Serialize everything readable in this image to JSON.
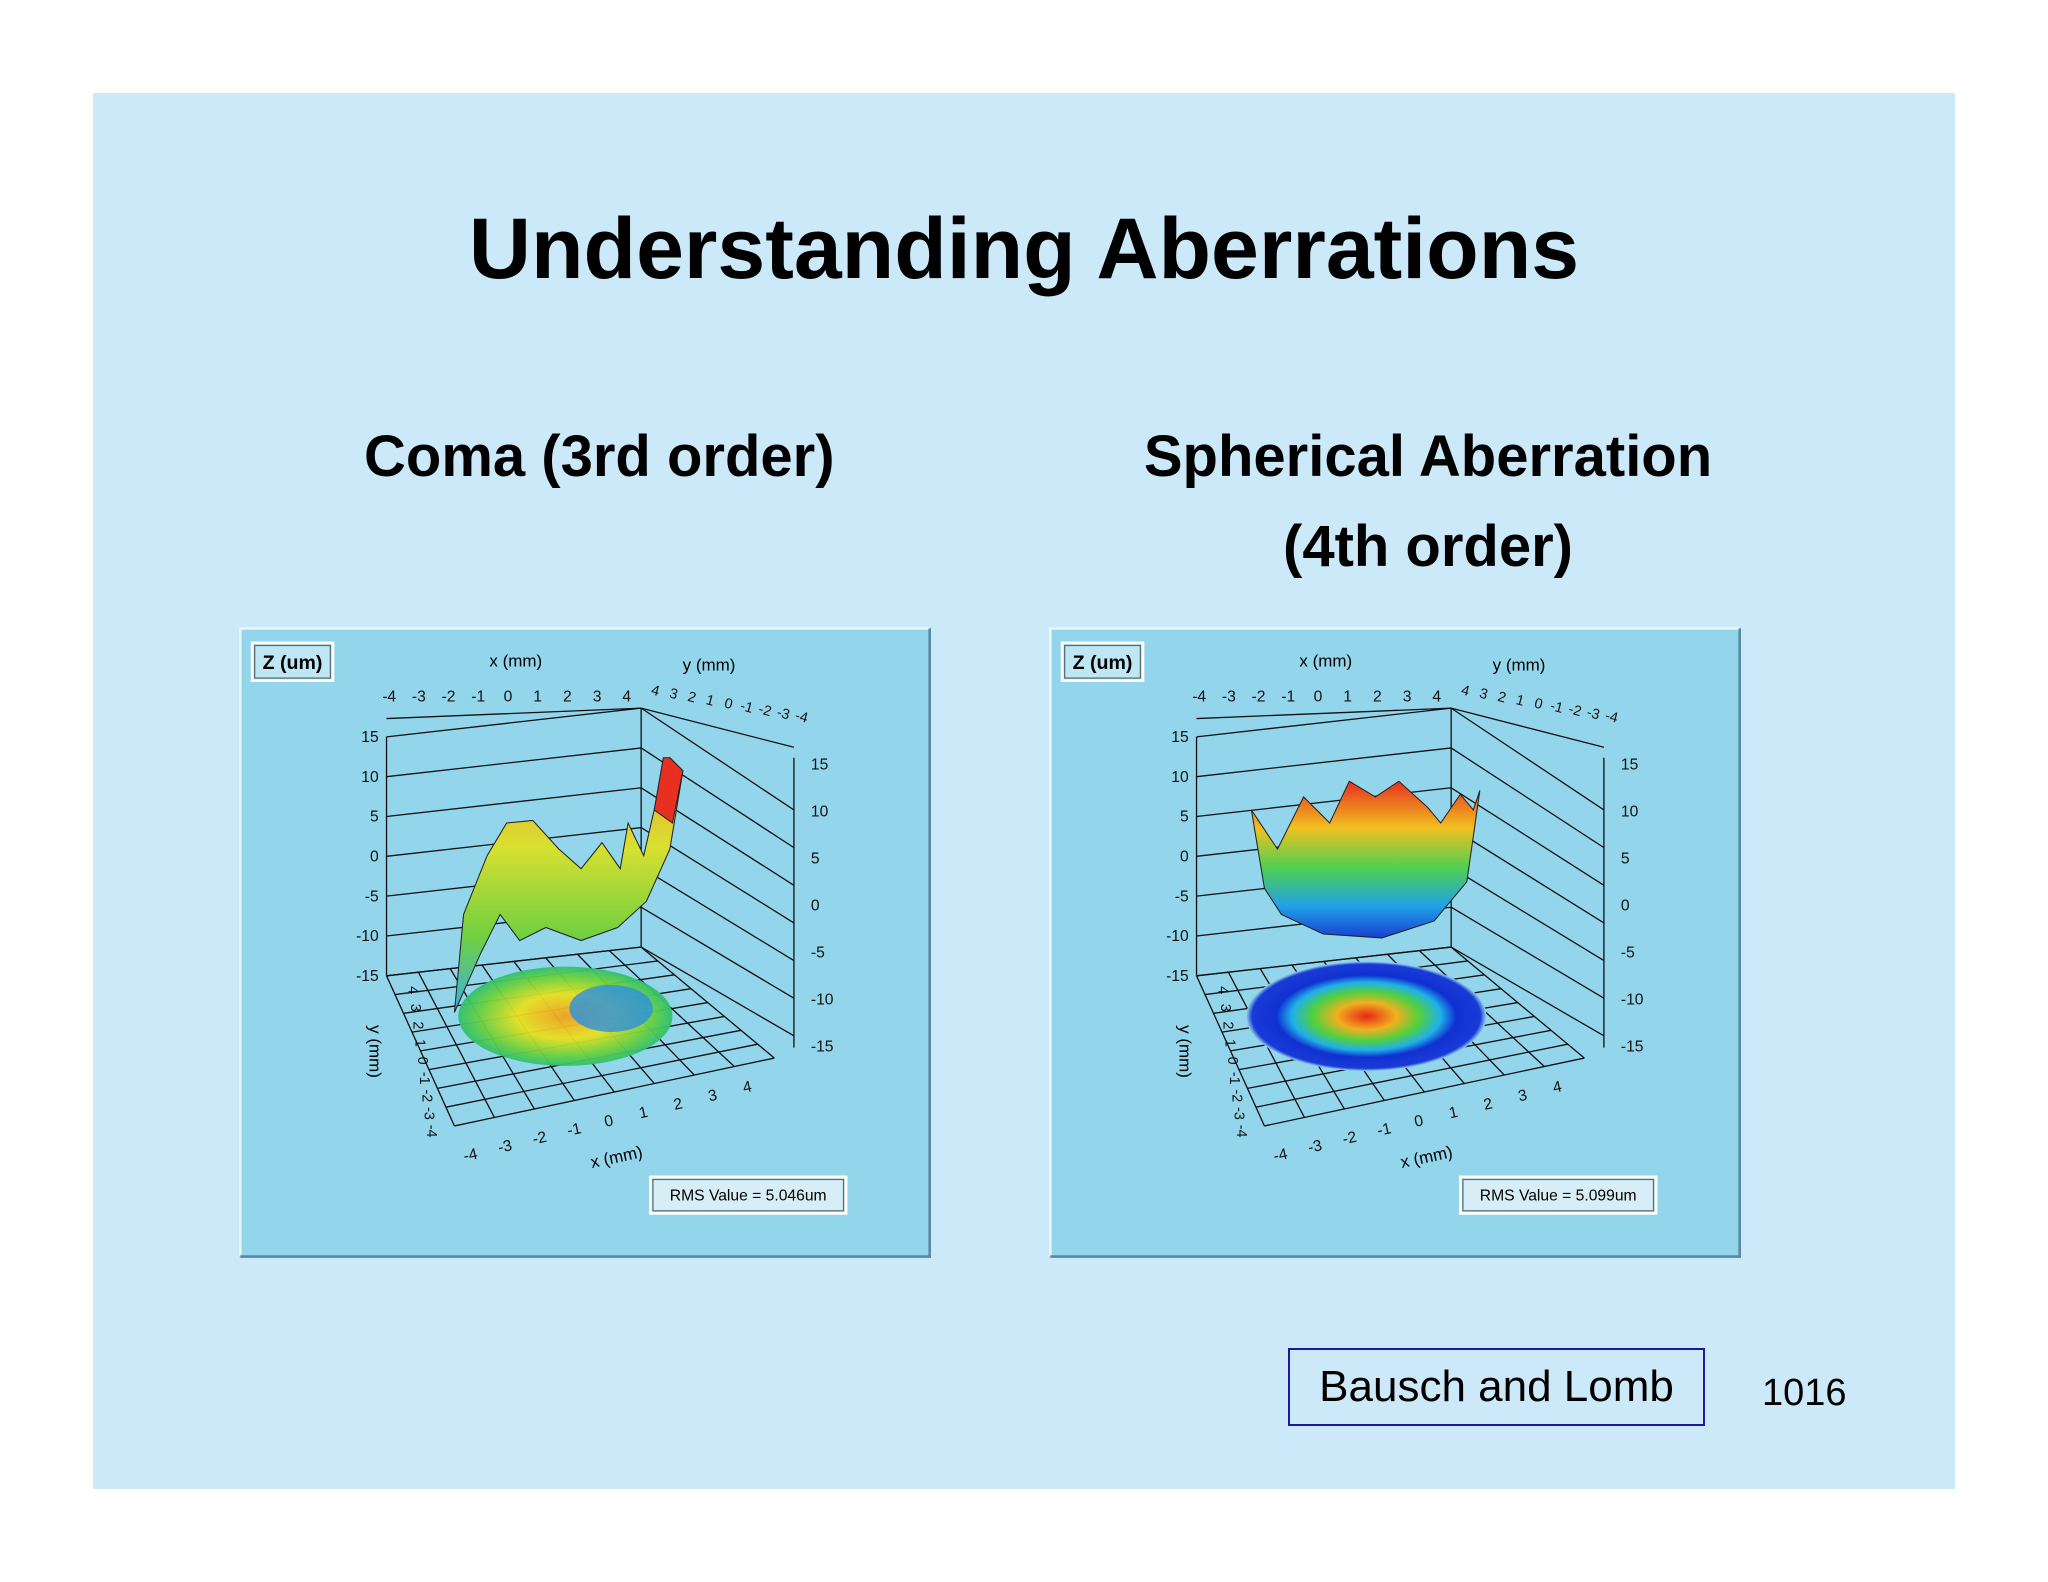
{
  "title": "Understanding Aberrations",
  "panels": [
    {
      "heading": [
        "Coma (3rd order)"
      ],
      "z_label": "Z (um)",
      "x_label": "x (mm)",
      "y_label": "y (mm)",
      "x_ticks": [
        -4,
        -3,
        -2,
        -1,
        0,
        1,
        2,
        3,
        4
      ],
      "y_ticks": [
        4,
        3,
        2,
        1,
        0,
        -1,
        -2,
        -3,
        -4
      ],
      "z_ticks": [
        15,
        10,
        5,
        0,
        -5,
        -10,
        -15
      ],
      "rms": "RMS Value = 5.046um"
    },
    {
      "heading": [
        "Spherical Aberration",
        "(4th order)"
      ],
      "z_label": "Z (um)",
      "x_label": "x (mm)",
      "y_label": "y (mm)",
      "x_ticks": [
        -4,
        -3,
        -2,
        -1,
        0,
        1,
        2,
        3,
        4
      ],
      "y_ticks": [
        4,
        3,
        2,
        1,
        0,
        -1,
        -2,
        -3,
        -4
      ],
      "z_ticks": [
        15,
        10,
        5,
        0,
        -5,
        -10,
        -15
      ],
      "rms": "RMS Value = 5.099um"
    }
  ],
  "credit": "Bausch and Lomb",
  "page_number": "1016"
}
